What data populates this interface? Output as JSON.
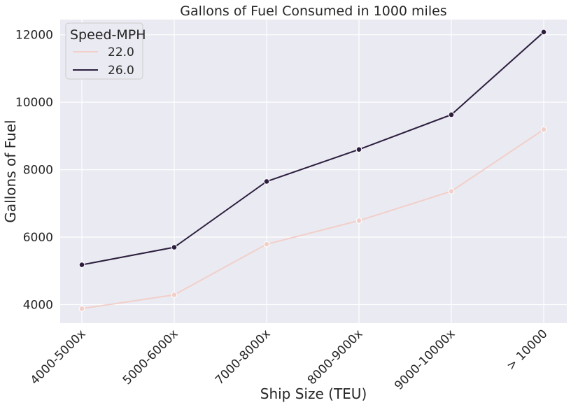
{
  "chart_data": {
    "type": "line",
    "title": "Gallons of Fuel Consumed in 1000 miles",
    "xlabel": "Ship Size (TEU)",
    "ylabel": "Gallons of Fuel",
    "categories": [
      "4000-5000x",
      "5000-6000x",
      "7000-8000x",
      "8000-9000x",
      "9000-10000x",
      "> 10000"
    ],
    "ylim": [
      3450,
      12450
    ],
    "yticks": [
      4000,
      6000,
      8000,
      10000,
      12000
    ],
    "grid": true,
    "legend": {
      "title": "Speed-MPH",
      "placement": "top-left"
    },
    "series": [
      {
        "name": "22.0",
        "color": "#f2cfc9",
        "values": [
          3880,
          4290,
          5790,
          6490,
          7360,
          9190
        ]
      },
      {
        "name": "26.0",
        "color": "#2d1e3e",
        "values": [
          5180,
          5700,
          7650,
          8600,
          9630,
          12080
        ]
      }
    ]
  }
}
